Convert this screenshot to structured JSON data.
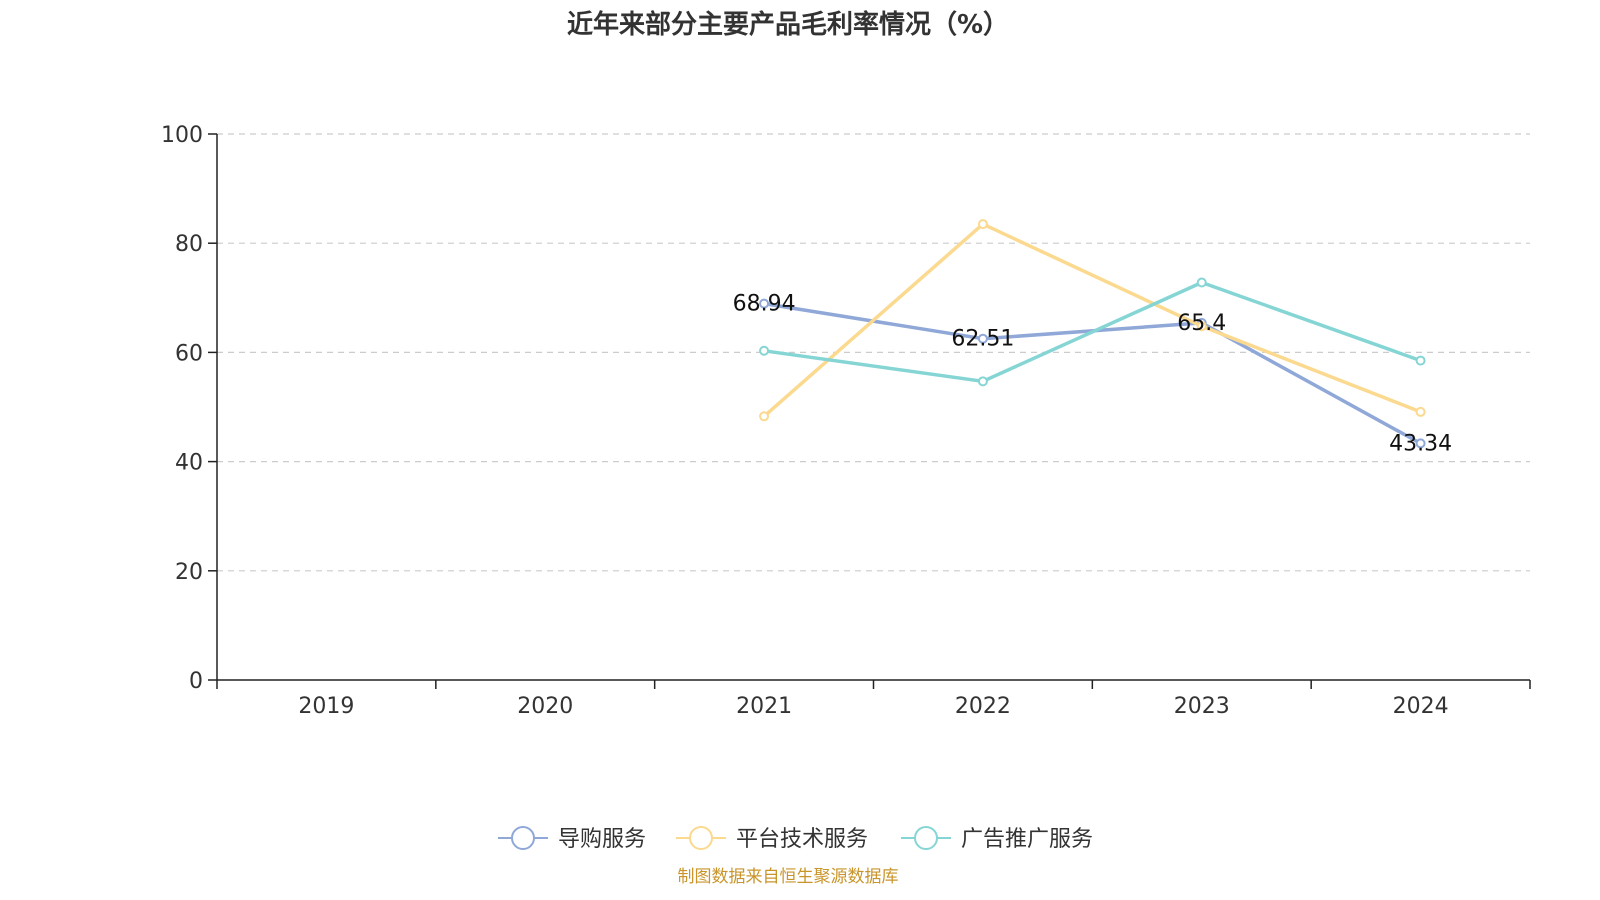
{
  "colors": {
    "text": "#333333",
    "axis": "#222222",
    "grid": "#cccccc",
    "source": "#c9952b"
  },
  "footer": {
    "source_text": "制图数据来自恒生聚源数据库"
  },
  "chart_data": {
    "type": "line",
    "title": "近年来部分主要产品毛利率情况（%）",
    "xlabel": "",
    "ylabel": "",
    "categories": [
      "2019",
      "2020",
      "2021",
      "2022",
      "2023",
      "2024"
    ],
    "ylim": [
      0,
      100
    ],
    "yticks": [
      0,
      20,
      40,
      60,
      80,
      100
    ],
    "grid": true,
    "legend_position": "bottom",
    "series": [
      {
        "name": "导购服务",
        "color": "#8fa8d8",
        "values": [
          null,
          null,
          68.94,
          62.51,
          65.4,
          43.34
        ],
        "show_labels": true,
        "labels": [
          "",
          "",
          "68.94",
          "62.51",
          "65.4",
          "43.34"
        ]
      },
      {
        "name": "平台技术服务",
        "color": "#fbd98f",
        "values": [
          null,
          null,
          48.3,
          83.5,
          64.8,
          49.1
        ],
        "show_labels": false
      },
      {
        "name": "广告推广服务",
        "color": "#86d5d5",
        "values": [
          null,
          null,
          60.3,
          54.7,
          72.8,
          58.5
        ],
        "show_labels": false
      }
    ]
  }
}
